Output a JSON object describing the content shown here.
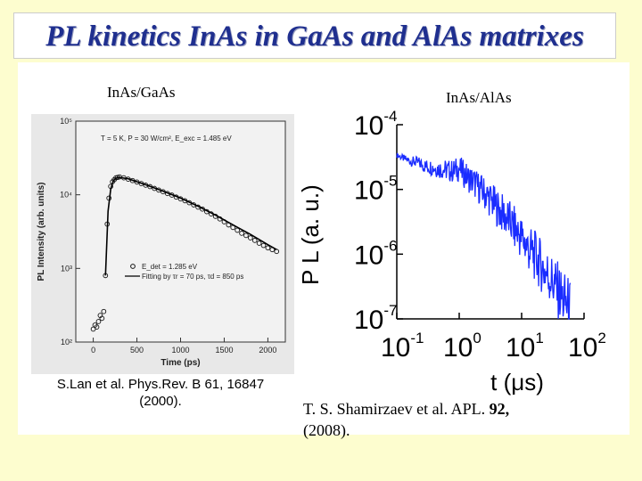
{
  "title": "PL kinetics InAs in GaAs and AlAs matrixes",
  "left_panel": {
    "label": "InAs/GaAs",
    "citation_line1": "S.Lan et al. Phys.Rev. B 61, 16847",
    "citation_line2": "(2000).",
    "conditions": "T = 5 K, P = 30 W/cm², E_exc = 1.485 eV",
    "legend": {
      "data_label": "E_det = 1.285 eV",
      "fit_label": "Fitting by τr = 70 ps, τd = 850 ps"
    }
  },
  "right_panel": {
    "label": "InAs/AlAs",
    "citation_main": "T. S. Shamirzaev et al. APL.",
    "citation_volume": "92,",
    "citation_year": "(2008)."
  },
  "chart_data": [
    {
      "type": "scatter",
      "panel": "left",
      "xlabel": "Time (ps)",
      "ylabel": "PL Intensity (arb. units)",
      "xlim": [
        -200,
        2200
      ],
      "ylim": [
        100,
        100000
      ],
      "yscale": "log",
      "x_ticks": [
        0,
        500,
        1000,
        1500,
        2000
      ],
      "y_ticks": [
        100,
        1000,
        10000,
        100000
      ],
      "x_tick_labels": [
        "0",
        "500",
        "1000",
        "1500",
        "2000"
      ],
      "y_tick_labels": [
        "10²",
        "10³",
        "10⁴",
        "10⁵"
      ],
      "series": [
        {
          "name": "E_det = 1.285 eV",
          "style": "circles",
          "x": [
            0,
            20,
            40,
            60,
            80,
            100,
            120,
            140,
            160,
            180,
            200,
            220,
            240,
            260,
            280,
            300,
            350,
            400,
            450,
            500,
            550,
            600,
            650,
            700,
            750,
            800,
            850,
            900,
            950,
            1000,
            1050,
            1100,
            1150,
            1200,
            1250,
            1300,
            1350,
            1400,
            1450,
            1500,
            1550,
            1600,
            1650,
            1700,
            1750,
            1800,
            1850,
            1900,
            1950,
            2000,
            2050,
            2100
          ],
          "y": [
            150,
            170,
            160,
            190,
            230,
            210,
            260,
            800,
            4000,
            9000,
            13000,
            15000,
            16000,
            17000,
            17200,
            17500,
            17000,
            16300,
            15600,
            14900,
            14200,
            13500,
            12900,
            12200,
            11600,
            11000,
            10400,
            9900,
            9300,
            8800,
            8300,
            7800,
            7300,
            6800,
            6400,
            5900,
            5500,
            5100,
            4700,
            4300,
            3900,
            3600,
            3300,
            3000,
            2800,
            2600,
            2400,
            2200,
            2050,
            1900,
            1800,
            1700
          ]
        },
        {
          "name": "Fitting by τr = 70 ps, τd = 850 ps",
          "style": "line",
          "x": [
            140,
            170,
            200,
            230,
            260,
            300,
            400,
            600,
            800,
            1000,
            1200,
            1400,
            1600,
            1800,
            2000,
            2100
          ],
          "y": [
            800,
            6000,
            12000,
            15500,
            16800,
            17200,
            16500,
            13700,
            11200,
            9000,
            7000,
            5300,
            3900,
            2900,
            2100,
            1800
          ]
        }
      ]
    },
    {
      "type": "line",
      "panel": "right",
      "xlabel": "t (μs)",
      "ylabel": "P L (a. u.)",
      "xlim": [
        0.1,
        100
      ],
      "ylim": [
        1e-07,
        0.0001
      ],
      "xscale": "log",
      "yscale": "log",
      "x_ticks": [
        0.1,
        1,
        10,
        100
      ],
      "y_ticks": [
        1e-07,
        1e-06,
        1e-05,
        0.0001
      ],
      "x_tick_labels": [
        "10-1",
        "100",
        "101",
        "102"
      ],
      "y_tick_labels": [
        "10-7",
        "10-6",
        "10-5",
        "10-4"
      ],
      "series": [
        {
          "color": "#1a2cff",
          "x": [
            0.1,
            0.13,
            0.17,
            0.22,
            0.28,
            0.36,
            0.46,
            0.6,
            0.77,
            1.0,
            1.3,
            1.7,
            2.2,
            2.8,
            3.6,
            4.6,
            6.0,
            7.7,
            10,
            13,
            17,
            22,
            28,
            36,
            46,
            60
          ],
          "y": [
            3.4e-05,
            3e-05,
            2.7e-05,
            2.6e-05,
            2.3e-05,
            2.2e-05,
            2.1e-05,
            2e-05,
            1.9e-05,
            2.1e-05,
            1.6e-05,
            1.3e-05,
            1e-05,
            8e-06,
            6e-06,
            4.5e-06,
            3.5e-06,
            2.5e-06,
            1.8e-06,
            1.2e-06,
            9e-07,
            6e-07,
            4.5e-07,
            3e-07,
            2e-07,
            1.4e-07
          ]
        }
      ]
    }
  ]
}
